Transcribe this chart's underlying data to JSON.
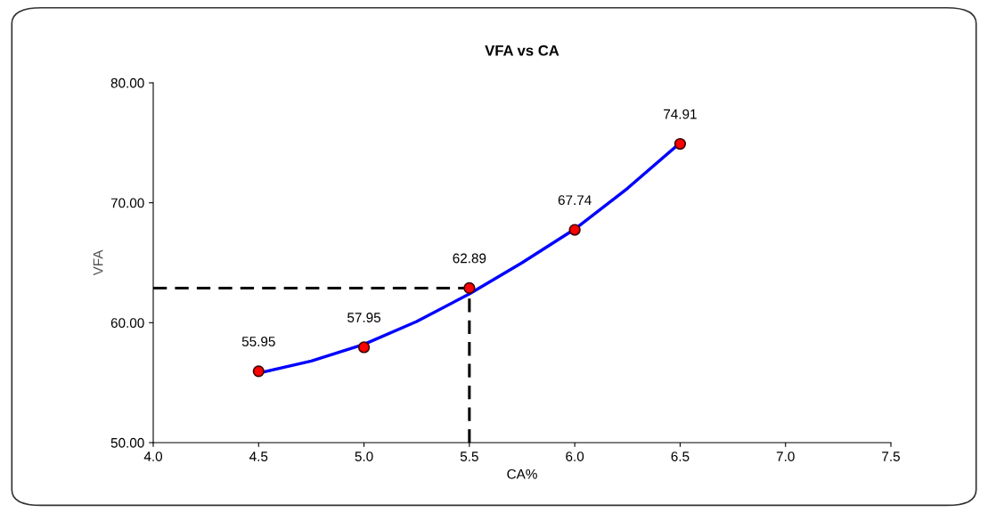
{
  "chart_data": {
    "type": "scatter",
    "title": "VFA vs CA",
    "xlabel": "CA%",
    "ylabel": "VFA",
    "xlim": [
      4.0,
      7.5
    ],
    "xticks": [
      {
        "value": 4.0,
        "label": "4.0"
      },
      {
        "value": 4.5,
        "label": "4.5"
      },
      {
        "value": 5.0,
        "label": "5.0"
      },
      {
        "value": 5.5,
        "label": "5.5"
      },
      {
        "value": 6.0,
        "label": "6.0"
      },
      {
        "value": 6.5,
        "label": "6.5"
      },
      {
        "value": 7.0,
        "label": "7.0"
      },
      {
        "value": 7.5,
        "label": "7.5"
      }
    ],
    "ylim": [
      50,
      80
    ],
    "yticks": [
      {
        "value": 50,
        "label": "50.00"
      },
      {
        "value": 60,
        "label": "60.00"
      },
      {
        "value": 70,
        "label": "70.00"
      },
      {
        "value": 80,
        "label": "80.00"
      }
    ],
    "grid": false,
    "legend": false,
    "series": [
      {
        "type": "line",
        "color": "#0000ff",
        "line_style": "solid",
        "marker": "none",
        "x": [
          4.5,
          4.75,
          5.0,
          5.25,
          5.5,
          5.75,
          6.0,
          6.25,
          6.5
        ],
        "values": [
          55.8,
          56.8,
          58.2,
          60.1,
          62.4,
          65.0,
          67.8,
          71.2,
          75.0
        ]
      },
      {
        "type": "line",
        "color": "#000000",
        "line_style": "dashed",
        "marker": "none",
        "x": [
          4.0,
          5.5,
          5.5
        ],
        "values": [
          62.89,
          62.89,
          50
        ]
      },
      {
        "color": "#ff0000",
        "marker": "circle",
        "data_labels": true,
        "x": [
          4.5,
          5.0,
          5.5,
          6.0,
          6.5
        ],
        "values": [
          55.95,
          57.95,
          62.89,
          67.74,
          74.91
        ]
      }
    ]
  }
}
